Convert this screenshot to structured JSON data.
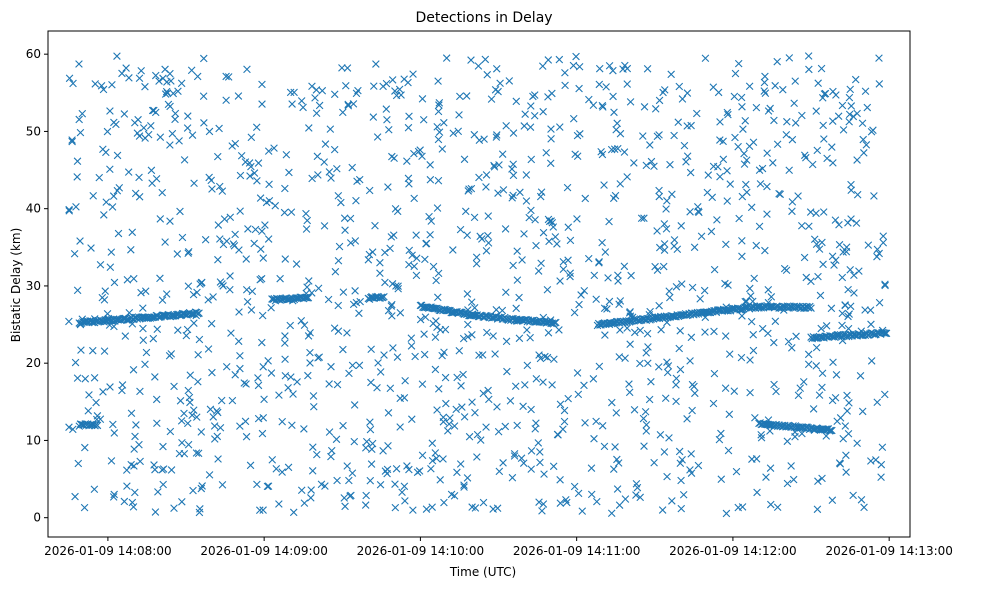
{
  "chart_data": {
    "type": "scatter",
    "title": "Detections in Delay",
    "xlabel": "Time (UTC)",
    "ylabel": "Bistatic Delay (km)",
    "marker": "x",
    "color": "#1f77b4",
    "grid": false,
    "legend": false,
    "xlim": [
      "2026-01-09 14:07:37",
      "2026-01-09 14:13:08"
    ],
    "ylim": [
      -2.5,
      63
    ],
    "x_ticks": [
      "2026-01-09 14:08:00",
      "2026-01-09 14:09:00",
      "2026-01-09 14:10:00",
      "2026-01-09 14:11:00",
      "2026-01-09 14:12:00",
      "2026-01-09 14:13:00"
    ],
    "y_ticks": [
      0,
      10,
      20,
      30,
      40,
      50,
      60
    ],
    "data_extent": {
      "start": "2026-01-09 14:07:45",
      "end": "2026-01-09 14:12:59",
      "ymin": 0.5,
      "ymax": 60
    },
    "tracks": [
      {
        "points": [
          [
            "2026-01-09 14:07:49",
            25.2
          ],
          [
            "2026-01-09 14:08:25",
            26.2
          ],
          [
            "2026-01-09 14:08:35",
            26.5
          ]
        ]
      },
      {
        "points": [
          [
            "2026-01-09 14:07:49",
            12.0
          ],
          [
            "2026-01-09 14:07:56",
            12.0
          ]
        ]
      },
      {
        "points": [
          [
            "2026-01-09 14:09:03",
            28.2
          ],
          [
            "2026-01-09 14:09:17",
            28.5
          ]
        ]
      },
      {
        "points": [
          [
            "2026-01-09 14:09:40",
            28.4
          ],
          [
            "2026-01-09 14:09:46",
            28.6
          ]
        ]
      },
      {
        "points": [
          [
            "2026-01-09 14:10:00",
            27.4
          ],
          [
            "2026-01-09 14:10:20",
            26.2
          ],
          [
            "2026-01-09 14:10:37",
            25.6
          ],
          [
            "2026-01-09 14:10:52",
            25.2
          ]
        ]
      },
      {
        "points": [
          [
            "2026-01-09 14:11:08",
            25.0
          ],
          [
            "2026-01-09 14:11:30",
            25.8
          ],
          [
            "2026-01-09 14:11:50",
            26.6
          ],
          [
            "2026-01-09 14:12:10",
            27.3
          ],
          [
            "2026-01-09 14:12:30",
            27.2
          ]
        ]
      },
      {
        "points": [
          [
            "2026-01-09 14:12:10",
            12.2
          ],
          [
            "2026-01-09 14:12:38",
            11.3
          ]
        ]
      },
      {
        "points": [
          [
            "2026-01-09 14:12:30",
            23.3
          ],
          [
            "2026-01-09 14:12:59",
            23.9
          ]
        ]
      }
    ],
    "noise_points": 1400
  }
}
